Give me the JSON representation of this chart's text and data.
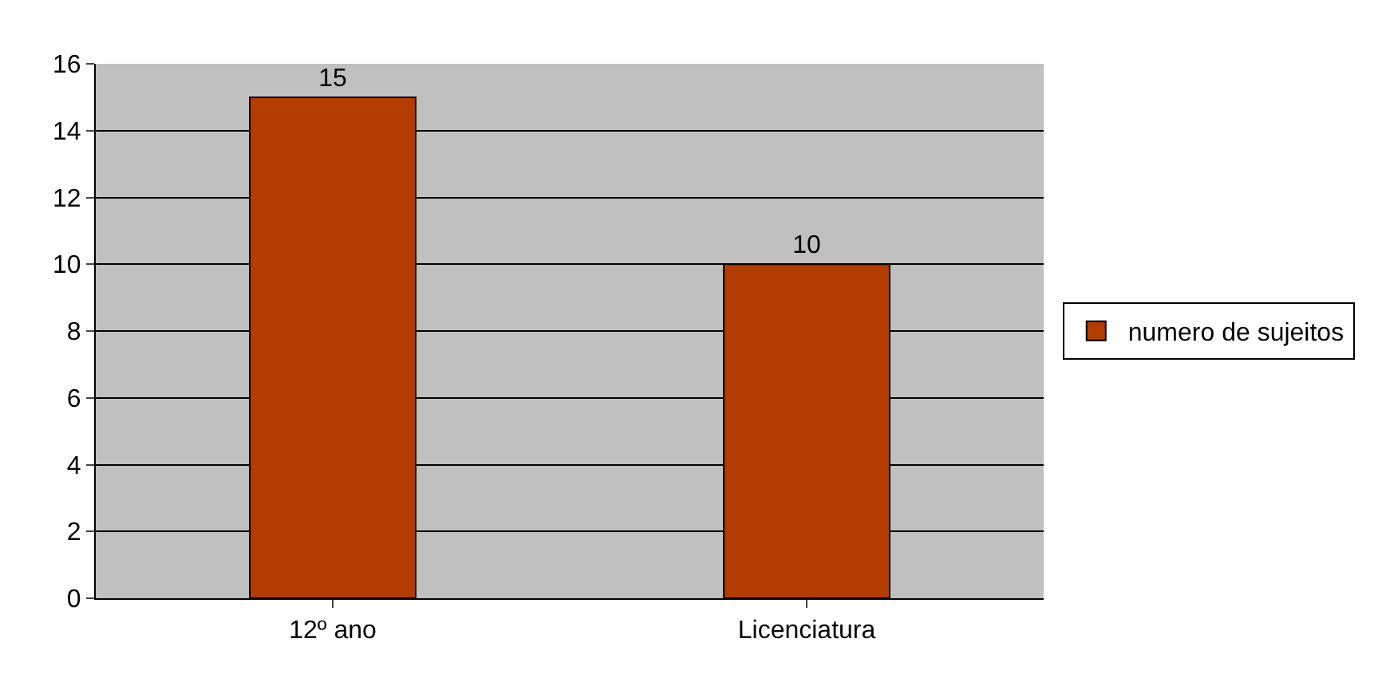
{
  "chart_data": {
    "type": "bar",
    "categories": [
      "12º ano",
      "Licenciatura"
    ],
    "series": [
      {
        "name": "numero de sujeitos",
        "color": "#b33c00",
        "values": [
          15,
          10
        ]
      }
    ],
    "ylim": [
      0,
      16
    ],
    "yticks": [
      0,
      2,
      4,
      6,
      8,
      10,
      12,
      14,
      16
    ],
    "grid": "y",
    "legend": "right",
    "data_labels": true
  }
}
